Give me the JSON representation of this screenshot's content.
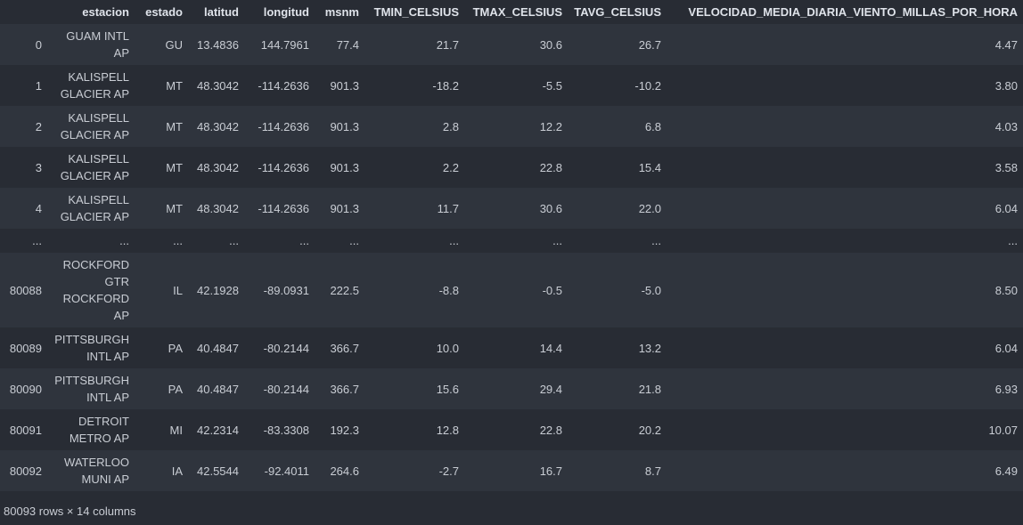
{
  "columns": [
    "",
    "estacion",
    "estado",
    "latitud",
    "longitud",
    "msnm",
    "TMIN_CELSIUS",
    "TMAX_CELSIUS",
    "TAVG_CELSIUS",
    "VELOCIDAD_MEDIA_DIARIA_VIENTO_MILLAS_POR_HORA"
  ],
  "rows": [
    {
      "idx": "0",
      "estacion": "GUAM INTL AP",
      "estado": "GU",
      "latitud": "13.4836",
      "longitud": "144.7961",
      "msnm": "77.4",
      "tmin": "21.7",
      "tmax": "30.6",
      "tavg": "26.7",
      "vel": "4.47"
    },
    {
      "idx": "1",
      "estacion": "KALISPELL GLACIER AP",
      "estado": "MT",
      "latitud": "48.3042",
      "longitud": "-114.2636",
      "msnm": "901.3",
      "tmin": "-18.2",
      "tmax": "-5.5",
      "tavg": "-10.2",
      "vel": "3.80"
    },
    {
      "idx": "2",
      "estacion": "KALISPELL GLACIER AP",
      "estado": "MT",
      "latitud": "48.3042",
      "longitud": "-114.2636",
      "msnm": "901.3",
      "tmin": "2.8",
      "tmax": "12.2",
      "tavg": "6.8",
      "vel": "4.03"
    },
    {
      "idx": "3",
      "estacion": "KALISPELL GLACIER AP",
      "estado": "MT",
      "latitud": "48.3042",
      "longitud": "-114.2636",
      "msnm": "901.3",
      "tmin": "2.2",
      "tmax": "22.8",
      "tavg": "15.4",
      "vel": "3.58"
    },
    {
      "idx": "4",
      "estacion": "KALISPELL GLACIER AP",
      "estado": "MT",
      "latitud": "48.3042",
      "longitud": "-114.2636",
      "msnm": "901.3",
      "tmin": "11.7",
      "tmax": "30.6",
      "tavg": "22.0",
      "vel": "6.04"
    },
    {
      "idx": "...",
      "estacion": "...",
      "estado": "...",
      "latitud": "...",
      "longitud": "...",
      "msnm": "...",
      "tmin": "...",
      "tmax": "...",
      "tavg": "...",
      "vel": "..."
    },
    {
      "idx": "80088",
      "estacion": "ROCKFORD GTR ROCKFORD AP",
      "estado": "IL",
      "latitud": "42.1928",
      "longitud": "-89.0931",
      "msnm": "222.5",
      "tmin": "-8.8",
      "tmax": "-0.5",
      "tavg": "-5.0",
      "vel": "8.50"
    },
    {
      "idx": "80089",
      "estacion": "PITTSBURGH INTL AP",
      "estado": "PA",
      "latitud": "40.4847",
      "longitud": "-80.2144",
      "msnm": "366.7",
      "tmin": "10.0",
      "tmax": "14.4",
      "tavg": "13.2",
      "vel": "6.04"
    },
    {
      "idx": "80090",
      "estacion": "PITTSBURGH INTL AP",
      "estado": "PA",
      "latitud": "40.4847",
      "longitud": "-80.2144",
      "msnm": "366.7",
      "tmin": "15.6",
      "tmax": "29.4",
      "tavg": "21.8",
      "vel": "6.93"
    },
    {
      "idx": "80091",
      "estacion": "DETROIT METRO AP",
      "estado": "MI",
      "latitud": "42.2314",
      "longitud": "-83.3308",
      "msnm": "192.3",
      "tmin": "12.8",
      "tmax": "22.8",
      "tavg": "20.2",
      "vel": "10.07"
    },
    {
      "idx": "80092",
      "estacion": "WATERLOO MUNI AP",
      "estado": "IA",
      "latitud": "42.5544",
      "longitud": "-92.4011",
      "msnm": "264.6",
      "tmin": "-2.7",
      "tmax": "16.7",
      "tavg": "8.7",
      "vel": "6.49"
    }
  ],
  "footer": "80093 rows × 14 columns"
}
